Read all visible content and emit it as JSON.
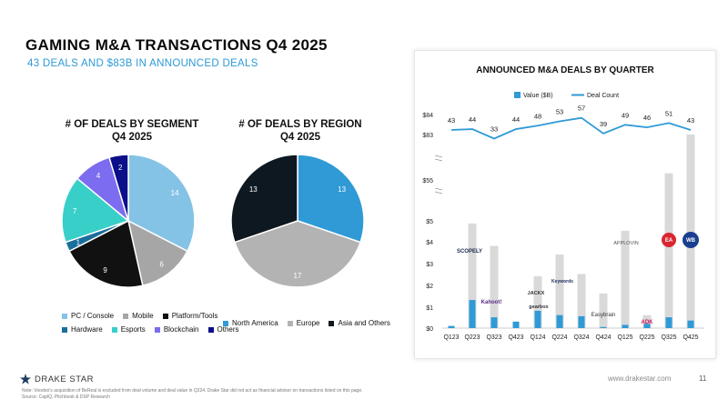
{
  "header": {
    "title": "GAMING M&A TRANSACTIONS Q4 2025",
    "subtitle": "43 DEALS AND $83B IN ANNOUNCED DEALS"
  },
  "footer": {
    "brand": "DRAKE STAR",
    "url": "www.drakestar.com",
    "page": "11",
    "note_line1": "Note: Voodoo's acquisition of BeReal is excluded from deal volume and deal value in Q224. Drake Star did not act as financial advisor on transactions listed on this page.",
    "note_line2": "Source: CapIQ, Pitchbook & DSP Research"
  },
  "pie1": {
    "title_line1": "# OF DEALS BY SEGMENT",
    "title_line2": "Q4 2025"
  },
  "pie2": {
    "title_line1": "# OF DEALS BY REGION",
    "title_line2": "Q4 2025"
  },
  "legend1": {
    "row1": [
      "PC / Console",
      "Mobile",
      "Platform/Tools"
    ],
    "row2": [
      "Hardware",
      "Esports",
      "Blockchain",
      "Others"
    ]
  },
  "legend2": {
    "items": [
      "North America",
      "Europe",
      "Asia and Others"
    ]
  },
  "bar_chart": {
    "title": "ANNOUNCED M&A DEALS BY QUARTER",
    "legend_value": "Value ($B)",
    "legend_count": "Deal Count"
  },
  "company_logos": [
    "SCOPELY",
    "Kahoot!",
    "JACKX",
    "Keywords",
    "gearbox",
    "Easybrain",
    "APPLOVIN",
    "ADK",
    "EA",
    "WB"
  ],
  "chart_data": [
    {
      "type": "pie",
      "title": "# OF DEALS BY SEGMENT Q4 2025",
      "labels": [
        "PC / Console",
        "Mobile",
        "Platform/Tools",
        "Hardware",
        "Esports",
        "Blockchain",
        "Others"
      ],
      "values": [
        14,
        6,
        9,
        1,
        7,
        4,
        2
      ],
      "colors": [
        "#85c3e6",
        "#a6a6a6",
        "#111111",
        "#1a6e9c",
        "#38cfc9",
        "#7b6cf0",
        "#0b0f8a"
      ]
    },
    {
      "type": "pie",
      "title": "# OF DEALS BY REGION Q4 2025",
      "labels": [
        "North America",
        "Europe",
        "Asia and Others"
      ],
      "values": [
        13,
        17,
        13
      ],
      "colors": [
        "#2f9ad6",
        "#b3b3b3",
        "#0d1820"
      ]
    },
    {
      "type": "bar",
      "title": "ANNOUNCED M&A DEALS BY QUARTER",
      "categories": [
        "Q123",
        "Q223",
        "Q323",
        "Q423",
        "Q124",
        "Q224",
        "Q324",
        "Q424",
        "Q125",
        "Q225",
        "Q325",
        "Q425"
      ],
      "series": [
        {
          "name": "Value ($B)",
          "type": "bar",
          "values": [
            0.1,
            1.3,
            0.5,
            0.3,
            0.8,
            0.6,
            0.55,
            0.05,
            0.15,
            0.2,
            0.5,
            0.35
          ]
        },
        {
          "name": "Deal Count",
          "type": "line",
          "values": [
            43,
            44,
            33,
            44,
            48,
            53,
            57,
            39,
            49,
            46,
            51,
            43
          ]
        }
      ],
      "total_values_approx": [
        null,
        6.2,
        3.8,
        null,
        2.4,
        3.4,
        2.5,
        1.6,
        4.5,
        0.6,
        60,
        83
      ],
      "y_ticks": [
        "$0",
        "$1",
        "$2",
        "$3",
        "$4",
        "$5",
        "$55",
        "$83",
        "$84"
      ],
      "y_axis_break": true,
      "colors": {
        "value_bar": "#2f9ad6",
        "announced_bar": "#d9d9d9",
        "line": "#2f9ad6"
      }
    }
  ]
}
